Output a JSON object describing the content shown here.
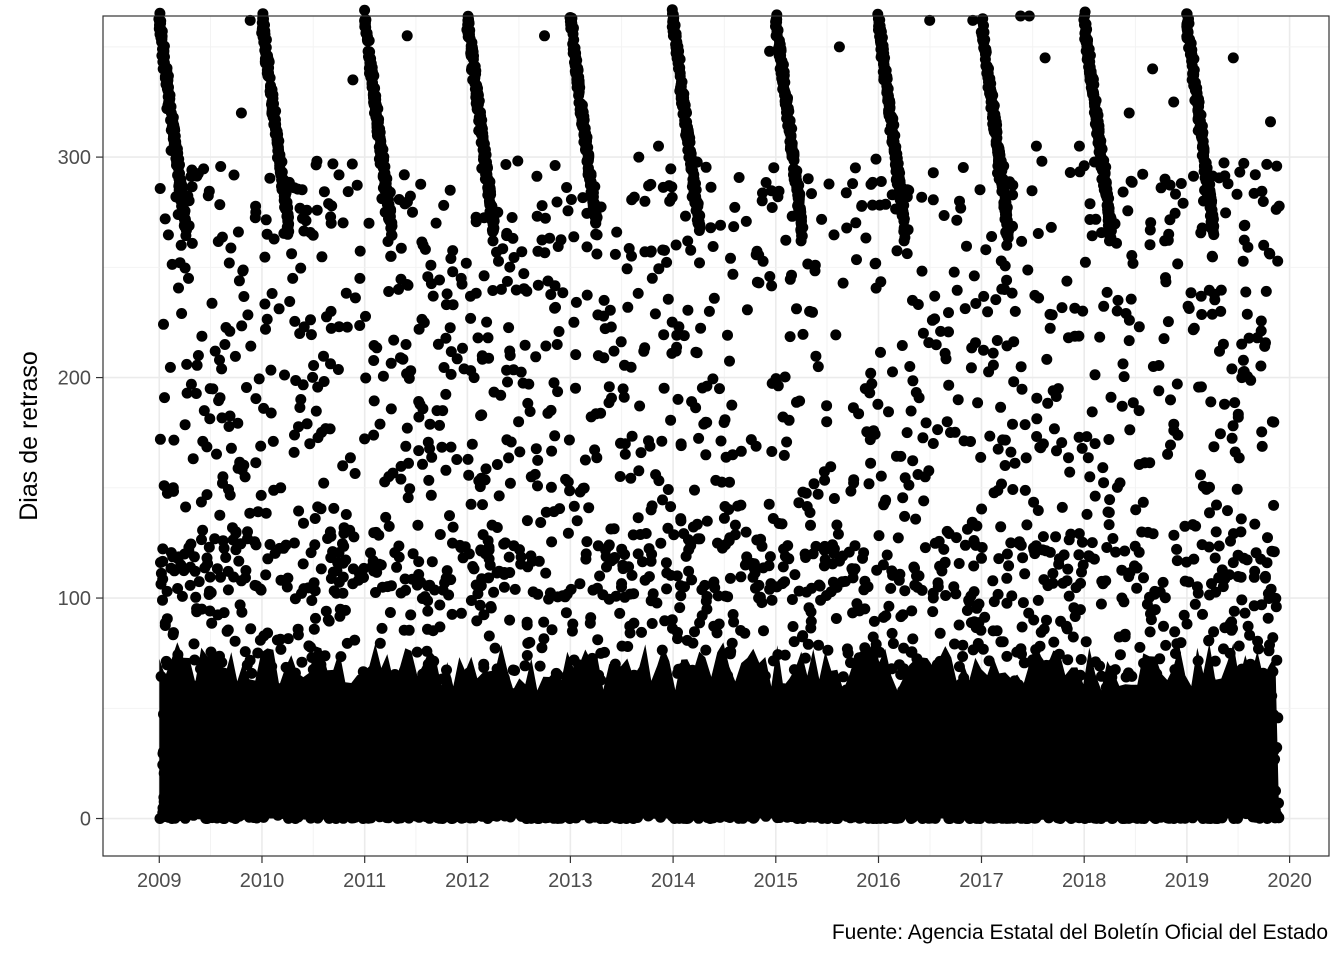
{
  "chart_data": {
    "type": "scatter",
    "title": "",
    "xlabel": "",
    "ylabel": "Dias de retraso",
    "caption": "Fuente: Agencia Estatal del Boletín Oficial del Estado",
    "x_ticks": [
      "2009",
      "2010",
      "2011",
      "2012",
      "2013",
      "2014",
      "2015",
      "2016",
      "2017",
      "2018",
      "2019",
      "2020"
    ],
    "y_ticks": [
      "0",
      "100",
      "200",
      "300"
    ],
    "xlim": [
      "2008-06-15",
      "2020-05-20"
    ],
    "ylim": [
      -17,
      364
    ],
    "grid": true,
    "point_color": "#000000",
    "series": [
      {
        "points": [
          [
            "2009-01-02",
            360
          ],
          [
            "2009-01-15",
            340
          ],
          [
            "2009-01-28",
            322
          ],
          [
            "2009-02-12",
            303
          ],
          [
            "2009-03-01",
            282
          ],
          [
            "2009-03-20",
            260
          ],
          [
            "2009-04-15",
            245
          ],
          [
            "2009-05-20",
            210
          ],
          [
            "2009-06-10",
            185
          ],
          [
            "2009-02-20",
            150
          ],
          [
            "2009-01-05",
            172
          ],
          [
            "2009-04-01",
            120
          ],
          [
            "2009-07-01",
            195
          ],
          [
            "2009-08-15",
            155
          ],
          [
            "2009-10-01",
            130
          ],
          [
            "2009-10-20",
            320
          ],
          [
            "2009-11-20",
            362
          ],
          [
            "2009-12-10",
            275
          ],
          [
            "2010-01-02",
            358
          ],
          [
            "2010-01-20",
            338
          ],
          [
            "2010-02-10",
            318
          ],
          [
            "2010-03-05",
            295
          ],
          [
            "2010-03-28",
            285
          ],
          [
            "2010-04-20",
            245
          ],
          [
            "2010-05-15",
            220
          ],
          [
            "2010-06-20",
            170
          ],
          [
            "2010-09-01",
            130
          ],
          [
            "2010-10-15",
            160
          ],
          [
            "2010-11-20",
            335
          ],
          [
            "2010-12-15",
            245
          ],
          [
            "2011-01-02",
            360
          ],
          [
            "2011-01-18",
            338
          ],
          [
            "2011-02-05",
            320
          ],
          [
            "2011-02-25",
            297
          ],
          [
            "2011-03-15",
            275
          ],
          [
            "2011-04-05",
            255
          ],
          [
            "2011-05-01",
            240
          ],
          [
            "2011-06-01",
            355
          ],
          [
            "2011-06-20",
            275
          ],
          [
            "2011-08-01",
            225
          ],
          [
            "2011-09-15",
            185
          ],
          [
            "2011-11-01",
            285
          ],
          [
            "2011-12-10",
            245
          ],
          [
            "2012-01-02",
            360
          ],
          [
            "2012-01-20",
            335
          ],
          [
            "2012-02-10",
            312
          ],
          [
            "2012-03-05",
            290
          ],
          [
            "2012-04-01",
            262
          ],
          [
            "2012-05-01",
            240
          ],
          [
            "2012-06-01",
            210
          ],
          [
            "2012-07-01",
            180
          ],
          [
            "2012-08-15",
            155
          ],
          [
            "2012-10-01",
            355
          ],
          [
            "2012-11-15",
            215
          ],
          [
            "2013-01-02",
            360
          ],
          [
            "2013-01-20",
            338
          ],
          [
            "2013-02-10",
            315
          ],
          [
            "2013-03-05",
            292
          ],
          [
            "2013-04-01",
            265
          ],
          [
            "2013-05-01",
            235
          ],
          [
            "2013-06-05",
            212
          ],
          [
            "2013-07-15",
            170
          ],
          [
            "2013-09-01",
            300
          ],
          [
            "2013-10-15",
            140
          ],
          [
            "2013-11-10",
            305
          ],
          [
            "2013-12-20",
            280
          ],
          [
            "2014-01-02",
            355
          ],
          [
            "2014-01-25",
            330
          ],
          [
            "2014-02-15",
            310
          ],
          [
            "2014-03-10",
            282
          ],
          [
            "2014-04-05",
            252
          ],
          [
            "2014-05-10",
            230
          ],
          [
            "2014-06-15",
            195
          ],
          [
            "2014-08-01",
            165
          ],
          [
            "2014-09-15",
            115
          ],
          [
            "2014-11-01",
            100
          ],
          [
            "2014-12-10",
            348
          ],
          [
            "2015-01-02",
            360
          ],
          [
            "2015-01-20",
            338
          ],
          [
            "2015-02-10",
            318
          ],
          [
            "2015-03-05",
            292
          ],
          [
            "2015-04-01",
            262
          ],
          [
            "2015-05-01",
            230
          ],
          [
            "2015-06-01",
            205
          ],
          [
            "2015-07-01",
            180
          ],
          [
            "2015-08-15",
            350
          ],
          [
            "2015-10-01",
            288
          ],
          [
            "2015-11-15",
            195
          ],
          [
            "2016-01-02",
            358
          ],
          [
            "2016-01-20",
            335
          ],
          [
            "2016-02-10",
            312
          ],
          [
            "2016-03-05",
            290
          ],
          [
            "2016-04-01",
            262
          ],
          [
            "2016-05-01",
            235
          ],
          [
            "2016-06-15",
            155
          ],
          [
            "2016-07-01",
            362
          ],
          [
            "2016-09-01",
            180
          ],
          [
            "2016-10-15",
            280
          ],
          [
            "2016-12-01",
            362
          ],
          [
            "2017-01-02",
            362
          ],
          [
            "2017-01-20",
            338
          ],
          [
            "2017-02-10",
            315
          ],
          [
            "2017-03-05",
            290
          ],
          [
            "2017-04-01",
            260
          ],
          [
            "2017-05-01",
            230
          ],
          [
            "2017-05-20",
            364
          ],
          [
            "2017-06-20",
            364
          ],
          [
            "2017-07-15",
            305
          ],
          [
            "2017-08-15",
            345
          ],
          [
            "2017-10-01",
            195
          ],
          [
            "2017-12-15",
            305
          ],
          [
            "2018-01-02",
            360
          ],
          [
            "2018-01-20",
            338
          ],
          [
            "2018-02-10",
            315
          ],
          [
            "2018-03-05",
            290
          ],
          [
            "2018-04-01",
            262
          ],
          [
            "2018-05-01",
            235
          ],
          [
            "2018-06-10",
            320
          ],
          [
            "2018-07-15",
            185
          ],
          [
            "2018-09-01",
            340
          ],
          [
            "2018-10-15",
            290
          ],
          [
            "2018-11-15",
            325
          ],
          [
            "2019-01-02",
            358
          ],
          [
            "2019-01-20",
            335
          ],
          [
            "2019-02-10",
            312
          ],
          [
            "2019-03-05",
            285
          ],
          [
            "2019-04-01",
            255
          ],
          [
            "2019-05-01",
            230
          ],
          [
            "2019-06-15",
            345
          ],
          [
            "2019-07-15",
            200
          ],
          [
            "2019-09-01",
            292
          ],
          [
            "2019-10-01",
            260
          ],
          [
            "2019-10-25",
            316
          ],
          [
            "2019-11-01",
            180
          ],
          [
            "2019-11-05",
            142
          ],
          [
            "2009-06-01",
            95
          ],
          [
            "2010-04-01",
            105
          ],
          [
            "2011-03-01",
            115
          ],
          [
            "2012-05-15",
            125
          ],
          [
            "2013-04-15",
            110
          ],
          [
            "2014-05-01",
            95
          ],
          [
            "2015-04-15",
            120
          ],
          [
            "2016-05-15",
            110
          ],
          [
            "2017-04-15",
            125
          ],
          [
            "2018-05-15",
            100
          ],
          [
            "2019-04-15",
            130
          ],
          [
            "2009-09-15",
            60
          ],
          [
            "2010-07-01",
            45
          ],
          [
            "2011-08-15",
            70
          ],
          [
            "2012-09-01",
            50
          ],
          [
            "2013-08-15",
            65
          ],
          [
            "2014-07-15",
            40
          ],
          [
            "2015-09-15",
            75
          ],
          [
            "2016-08-15",
            55
          ],
          [
            "2017-09-15",
            80
          ],
          [
            "2018-08-15",
            60
          ],
          [
            "2019-08-15",
            70
          ],
          [
            "2009-03-01",
            5
          ],
          [
            "2010-06-01",
            2
          ],
          [
            "2011-10-01",
            8
          ],
          [
            "2012-12-01",
            3
          ],
          [
            "2013-12-01",
            6
          ],
          [
            "2014-10-01",
            1
          ],
          [
            "2015-12-01",
            4
          ],
          [
            "2016-11-01",
            7
          ],
          [
            "2017-11-01",
            2
          ],
          [
            "2018-12-01",
            5
          ],
          [
            "2019-11-01",
            3
          ]
        ]
      }
    ]
  }
}
